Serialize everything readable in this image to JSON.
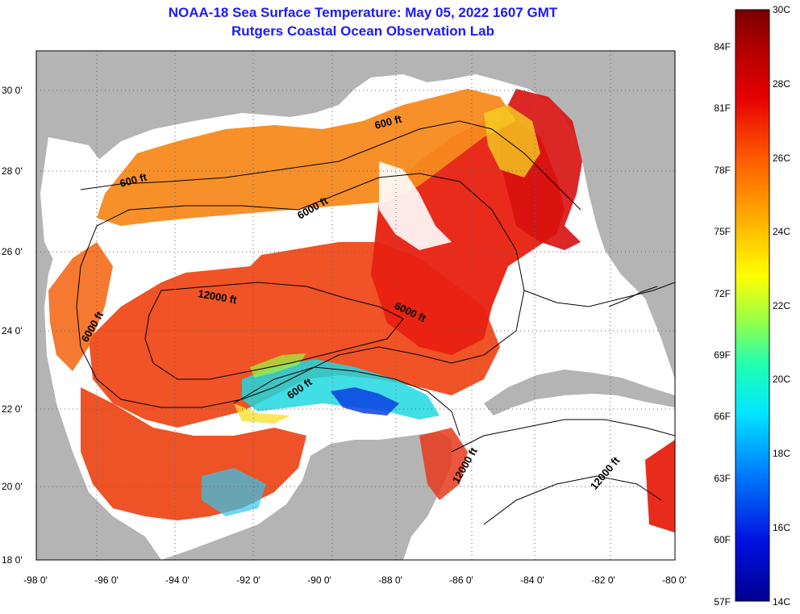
{
  "title": {
    "line1": "NOAA-18 Sea Surface Temperature:  May 05, 2022 1607 GMT",
    "line2": "Rutgers Coastal Ocean Observation Lab"
  },
  "axes": {
    "lat_labels": [
      "30 0'",
      "28 0'",
      "26 0'",
      "24 0'",
      "22 0'",
      "20 0'",
      "18 0'"
    ],
    "lon_labels": [
      "-98 0'",
      "-96 0'",
      "-94 0'",
      "-92 0'",
      "-90 0'",
      "-88 0'",
      "-86 0'",
      "-84 0'",
      "-82 0'",
      "-80 0'"
    ]
  },
  "isobaths": [
    "600 ft",
    "600 ft",
    "600 ft",
    "6000 ft",
    "6000 ft",
    "6000 ft",
    "12000 ft",
    "12000 ft",
    "12000 ft"
  ],
  "colorbar": {
    "fahrenheit": [
      "84F",
      "81F",
      "78F",
      "75F",
      "72F",
      "69F",
      "66F",
      "63F",
      "60F",
      "57F"
    ],
    "celsius": [
      "30C",
      "28C",
      "26C",
      "24C",
      "22C",
      "20C",
      "18C",
      "16C",
      "14C"
    ]
  },
  "colors": {
    "title": "#1a1aff",
    "land": "#b4b4b4",
    "cloud": "#ffffff",
    "warm": "#e8321a"
  }
}
